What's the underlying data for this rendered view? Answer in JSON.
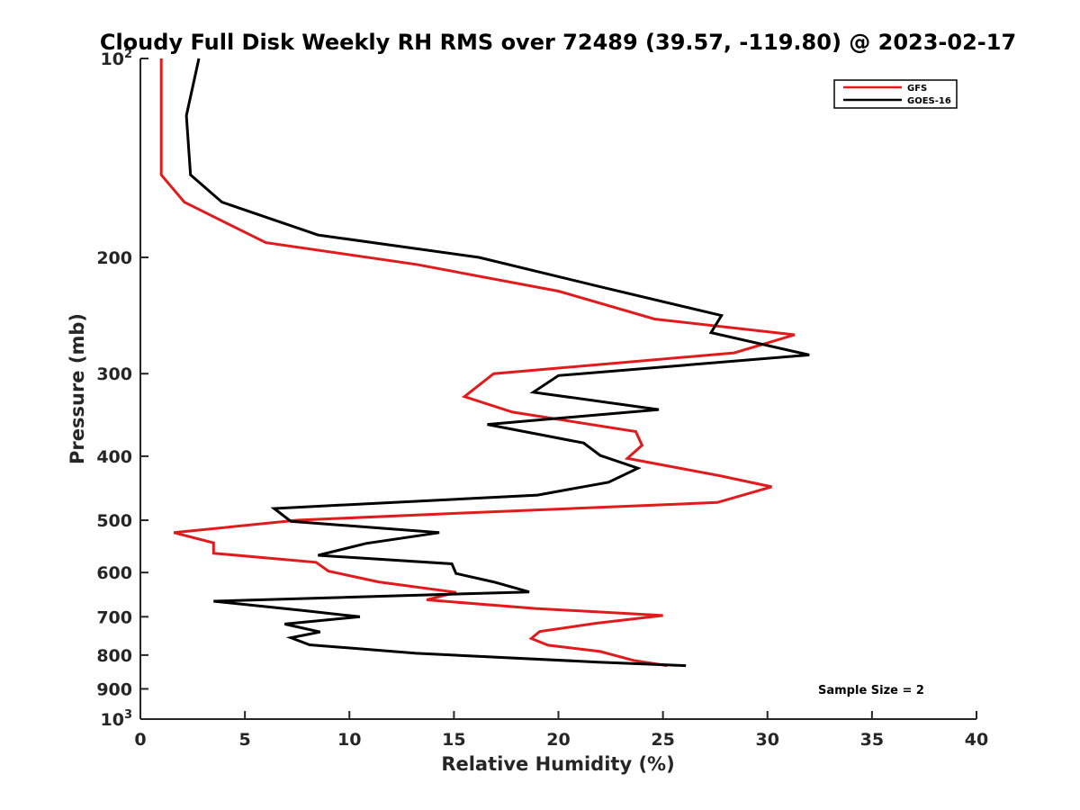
{
  "chart_data": {
    "type": "line",
    "title": "Cloudy Full Disk Weekly RH RMS over 72489 (39.57, -119.80) @ 2023-02-17",
    "xlabel": "Relative Humidity (%)",
    "ylabel": "Pressure (mb)",
    "xlim": [
      0,
      40
    ],
    "ylim": [
      100,
      1000
    ],
    "y_scale": "log",
    "y_reversed": true,
    "x_ticks": [
      0,
      5,
      10,
      15,
      20,
      25,
      30,
      35,
      40
    ],
    "y_ticks": [
      {
        "value": 100,
        "label": "10",
        "sup": "2"
      },
      {
        "value": 200,
        "label": "200"
      },
      {
        "value": 300,
        "label": "300"
      },
      {
        "value": 400,
        "label": "400"
      },
      {
        "value": 500,
        "label": "500"
      },
      {
        "value": 600,
        "label": "600"
      },
      {
        "value": 700,
        "label": "700"
      },
      {
        "value": 800,
        "label": "800"
      },
      {
        "value": 900,
        "label": "900"
      },
      {
        "value": 1000,
        "label": "10",
        "sup": "3"
      }
    ],
    "grid": false,
    "legend_position": "top-right",
    "annotation": "Sample Size = 2",
    "series": [
      {
        "name": "GFS",
        "color": "#e31a1c",
        "points": [
          [
            1.0,
            100
          ],
          [
            1.0,
            150
          ],
          [
            2.1,
            165
          ],
          [
            6.0,
            190
          ],
          [
            13.2,
            205
          ],
          [
            20.0,
            225
          ],
          [
            24.6,
            248
          ],
          [
            31.3,
            262
          ],
          [
            28.4,
            279
          ],
          [
            16.9,
            300
          ],
          [
            15.5,
            325
          ],
          [
            17.8,
            343
          ],
          [
            23.7,
            367
          ],
          [
            24.0,
            385
          ],
          [
            23.3,
            403
          ],
          [
            27.7,
            428
          ],
          [
            30.2,
            445
          ],
          [
            27.6,
            470
          ],
          [
            15.2,
            488
          ],
          [
            7.5,
            500
          ],
          [
            1.6,
            522
          ],
          [
            3.5,
            541
          ],
          [
            3.5,
            561
          ],
          [
            8.4,
            579
          ],
          [
            9.0,
            597
          ],
          [
            11.4,
            620
          ],
          [
            15.1,
            643
          ],
          [
            13.7,
            660
          ],
          [
            18.9,
            680
          ],
          [
            25.0,
            697
          ],
          [
            21.8,
            716
          ],
          [
            19.1,
            737
          ],
          [
            18.7,
            755
          ],
          [
            19.5,
            773
          ],
          [
            22.0,
            790
          ],
          [
            23.6,
            815
          ],
          [
            25.2,
            830
          ]
        ]
      },
      {
        "name": "GOES-16",
        "color": "#000000",
        "points": [
          [
            2.8,
            100
          ],
          [
            2.2,
            122
          ],
          [
            2.4,
            150
          ],
          [
            3.9,
            165
          ],
          [
            8.5,
            185
          ],
          [
            16.2,
            200
          ],
          [
            22.1,
            222
          ],
          [
            27.8,
            245
          ],
          [
            27.3,
            260
          ],
          [
            32.0,
            281
          ],
          [
            20.0,
            302
          ],
          [
            18.8,
            320
          ],
          [
            24.8,
            340
          ],
          [
            16.6,
            358
          ],
          [
            21.2,
            382
          ],
          [
            22.0,
            399
          ],
          [
            23.8,
            417
          ],
          [
            22.4,
            438
          ],
          [
            19.0,
            458
          ],
          [
            6.4,
            480
          ],
          [
            7.2,
            502
          ],
          [
            14.3,
            522
          ],
          [
            10.8,
            542
          ],
          [
            8.5,
            565
          ],
          [
            14.9,
            582
          ],
          [
            15.1,
            602
          ],
          [
            16.9,
            620
          ],
          [
            18.6,
            642
          ],
          [
            3.5,
            663
          ],
          [
            7.8,
            685
          ],
          [
            10.5,
            700
          ],
          [
            6.9,
            718
          ],
          [
            8.6,
            738
          ],
          [
            7.2,
            753
          ],
          [
            8.1,
            772
          ],
          [
            13.2,
            795
          ],
          [
            21.9,
            820
          ],
          [
            26.1,
            830
          ]
        ]
      }
    ]
  }
}
